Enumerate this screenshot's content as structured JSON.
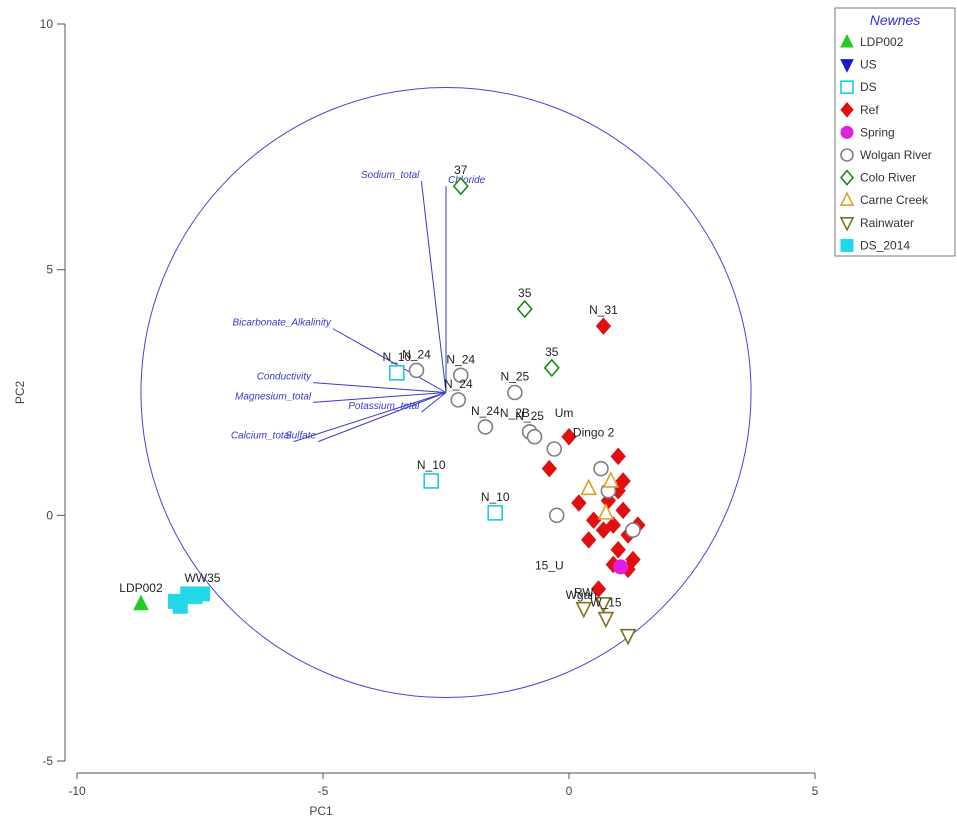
{
  "chart_data": {
    "type": "scatter",
    "xlabel": "PC1",
    "ylabel": "PC2",
    "xlim": [
      -10,
      5
    ],
    "ylim": [
      -5,
      10
    ],
    "xticks": [
      -10,
      -5,
      0,
      5
    ],
    "yticks": [
      -5,
      0,
      5,
      10
    ],
    "grid": false,
    "legend": {
      "title": "Newnes",
      "position": "top-right",
      "entries": [
        {
          "label": "LDP002",
          "marker": "triangle-up",
          "color": "#22cc22",
          "filled": true
        },
        {
          "label": "US",
          "marker": "triangle-down",
          "color": "#1a1acc",
          "filled": true
        },
        {
          "label": "DS",
          "marker": "square",
          "color": "#22c8e0",
          "filled": false
        },
        {
          "label": "Ref",
          "marker": "diamond",
          "color": "#e01010",
          "filled": true
        },
        {
          "label": "Spring",
          "marker": "circle",
          "color": "#e020e0",
          "filled": true
        },
        {
          "label": "Wolgan River",
          "marker": "circle",
          "color": "#808080",
          "filled": false
        },
        {
          "label": "Colo River",
          "marker": "diamond",
          "color": "#1a8a1a",
          "filled": false
        },
        {
          "label": "Carne Creek",
          "marker": "triangle-up",
          "color": "#e0a020",
          "filled": false
        },
        {
          "label": "Rainwater",
          "marker": "triangle-down",
          "color": "#807020",
          "filled": false
        },
        {
          "label": "DS_2014",
          "marker": "square",
          "color": "#22d8e8",
          "filled": true
        }
      ]
    },
    "correlation_circle": {
      "center": [
        -2.5,
        2.5
      ],
      "radius": 6.2,
      "color": "#4444dd"
    },
    "vectors": [
      {
        "label": "Sodium_total",
        "x": -3.0,
        "y": 6.8
      },
      {
        "label": "Chloride",
        "x": -2.5,
        "y": 6.7
      },
      {
        "label": "Bicarbonate_Alkalinity",
        "x": -4.8,
        "y": 3.8
      },
      {
        "label": "Conductivity",
        "x": -5.2,
        "y": 2.7
      },
      {
        "label": "Magnesium_total",
        "x": -5.2,
        "y": 2.3
      },
      {
        "label": "Potassium_total",
        "x": -3.0,
        "y": 2.1
      },
      {
        "label": "Calcium_total",
        "x": -5.6,
        "y": 1.5
      },
      {
        "label": "Sulfate",
        "x": -5.1,
        "y": 1.5
      }
    ],
    "series": [
      {
        "name": "LDP002",
        "points": [
          {
            "x": -8.7,
            "y": -1.8,
            "label": "LDP002"
          }
        ]
      },
      {
        "name": "US",
        "points": []
      },
      {
        "name": "DS",
        "points": [
          {
            "x": -3.5,
            "y": 2.9,
            "label": "N_10"
          },
          {
            "x": -2.8,
            "y": 0.7,
            "label": "N_10"
          },
          {
            "x": -1.5,
            "y": 0.05,
            "label": "N_10"
          }
        ]
      },
      {
        "name": "Ref",
        "points": [
          {
            "x": 0.7,
            "y": 3.85,
            "label": "N_31"
          },
          {
            "x": 0.0,
            "y": 1.6,
            "label": ""
          },
          {
            "x": -0.4,
            "y": 0.95,
            "label": ""
          },
          {
            "x": 1.0,
            "y": 1.2,
            "label": ""
          },
          {
            "x": 0.2,
            "y": 0.25,
            "label": ""
          },
          {
            "x": 0.5,
            "y": -0.1,
            "label": ""
          },
          {
            "x": 0.8,
            "y": 0.3,
            "label": ""
          },
          {
            "x": 1.0,
            "y": 0.5,
            "label": ""
          },
          {
            "x": 1.1,
            "y": 0.1,
            "label": ""
          },
          {
            "x": 0.7,
            "y": -0.3,
            "label": ""
          },
          {
            "x": 1.2,
            "y": -0.4,
            "label": ""
          },
          {
            "x": 1.0,
            "y": -0.7,
            "label": ""
          },
          {
            "x": 1.3,
            "y": -0.9,
            "label": ""
          },
          {
            "x": 1.2,
            "y": -1.1,
            "label": ""
          },
          {
            "x": 0.9,
            "y": -1.0,
            "label": ""
          },
          {
            "x": 0.6,
            "y": -1.5,
            "label": ""
          },
          {
            "x": 0.4,
            "y": -0.5,
            "label": ""
          },
          {
            "x": 1.4,
            "y": -0.2,
            "label": ""
          },
          {
            "x": 1.1,
            "y": 0.7,
            "label": ""
          },
          {
            "x": 0.9,
            "y": -0.2,
            "label": ""
          }
        ]
      },
      {
        "name": "Spring",
        "points": [
          {
            "x": 1.05,
            "y": -1.05,
            "label": ""
          }
        ]
      },
      {
        "name": "Wolgan River",
        "points": [
          {
            "x": -3.1,
            "y": 2.95,
            "label": "N_24"
          },
          {
            "x": -2.2,
            "y": 2.85,
            "label": "N_24"
          },
          {
            "x": -2.25,
            "y": 2.35,
            "label": "N_24"
          },
          {
            "x": -1.7,
            "y": 1.8,
            "label": "N_24"
          },
          {
            "x": -1.1,
            "y": 2.5,
            "label": "N_25"
          },
          {
            "x": -0.8,
            "y": 1.7,
            "label": "N_25"
          },
          {
            "x": -0.7,
            "y": 1.6,
            "label": ""
          },
          {
            "x": -0.3,
            "y": 1.35,
            "label": ""
          },
          {
            "x": -0.25,
            "y": 0.0,
            "label": ""
          },
          {
            "x": 0.65,
            "y": 0.95,
            "label": ""
          },
          {
            "x": 0.8,
            "y": 0.5,
            "label": ""
          },
          {
            "x": 1.3,
            "y": -0.3,
            "label": ""
          }
        ]
      },
      {
        "name": "Colo River",
        "points": [
          {
            "x": -2.2,
            "y": 6.7,
            "label": "37"
          },
          {
            "x": -0.9,
            "y": 4.2,
            "label": "35"
          },
          {
            "x": -0.35,
            "y": 3.0,
            "label": "35"
          }
        ]
      },
      {
        "name": "Carne Creek",
        "points": [
          {
            "x": 0.4,
            "y": 0.55,
            "label": ""
          },
          {
            "x": 0.75,
            "y": 0.05,
            "label": ""
          },
          {
            "x": 0.85,
            "y": 0.7,
            "label": ""
          }
        ]
      },
      {
        "name": "Rainwater",
        "points": [
          {
            "x": 0.3,
            "y": -1.9,
            "label": "RW"
          },
          {
            "x": 0.7,
            "y": -1.8,
            "label": ""
          },
          {
            "x": 0.75,
            "y": -2.1,
            "label": "W_15"
          },
          {
            "x": 1.2,
            "y": -2.45,
            "label": ""
          }
        ]
      },
      {
        "name": "DS_2014",
        "points": [
          {
            "x": -8.0,
            "y": -1.75,
            "label": ""
          },
          {
            "x": -7.9,
            "y": -1.85,
            "label": ""
          },
          {
            "x": -7.75,
            "y": -1.6,
            "label": ""
          },
          {
            "x": -7.6,
            "y": -1.65,
            "label": ""
          },
          {
            "x": -7.45,
            "y": -1.6,
            "label": "WW35"
          }
        ]
      }
    ],
    "annotations": [
      {
        "text": "N_2B",
        "x": -1.1,
        "y": 2.0
      },
      {
        "text": "Um",
        "x": -0.1,
        "y": 2.0
      },
      {
        "text": "Dingo 2",
        "x": 0.5,
        "y": 1.6
      },
      {
        "text": "15_U",
        "x": -0.4,
        "y": -1.1
      },
      {
        "text": "Wgan",
        "x": 0.25,
        "y": -1.7
      }
    ]
  }
}
